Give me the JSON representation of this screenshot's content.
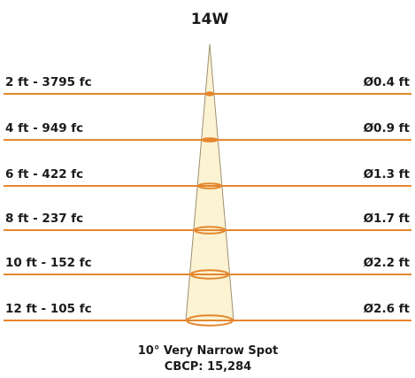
{
  "title": "14W",
  "beam": {
    "name": "10° Very Narrow Spot",
    "cbcp": "CBCP: 15,284"
  },
  "colors": {
    "line": "#e5872d",
    "beam_fill": "#fbf3d2",
    "beam_outline": "#9e9070",
    "text": "#1a1a1a"
  },
  "rows": [
    {
      "distance_label": "2 ft - 3795 fc",
      "diameter_label": "Ø0.4 ft"
    },
    {
      "distance_label": "4 ft - 949 fc",
      "diameter_label": "Ø0.9 ft"
    },
    {
      "distance_label": "6 ft - 422 fc",
      "diameter_label": "Ø1.3 ft"
    },
    {
      "distance_label": "8 ft - 237 fc",
      "diameter_label": "Ø1.7 ft"
    },
    {
      "distance_label": "10 ft - 152 fc",
      "diameter_label": "Ø2.2 ft"
    },
    {
      "distance_label": "12 ft - 105 fc",
      "diameter_label": "Ø2.6 ft"
    }
  ]
}
